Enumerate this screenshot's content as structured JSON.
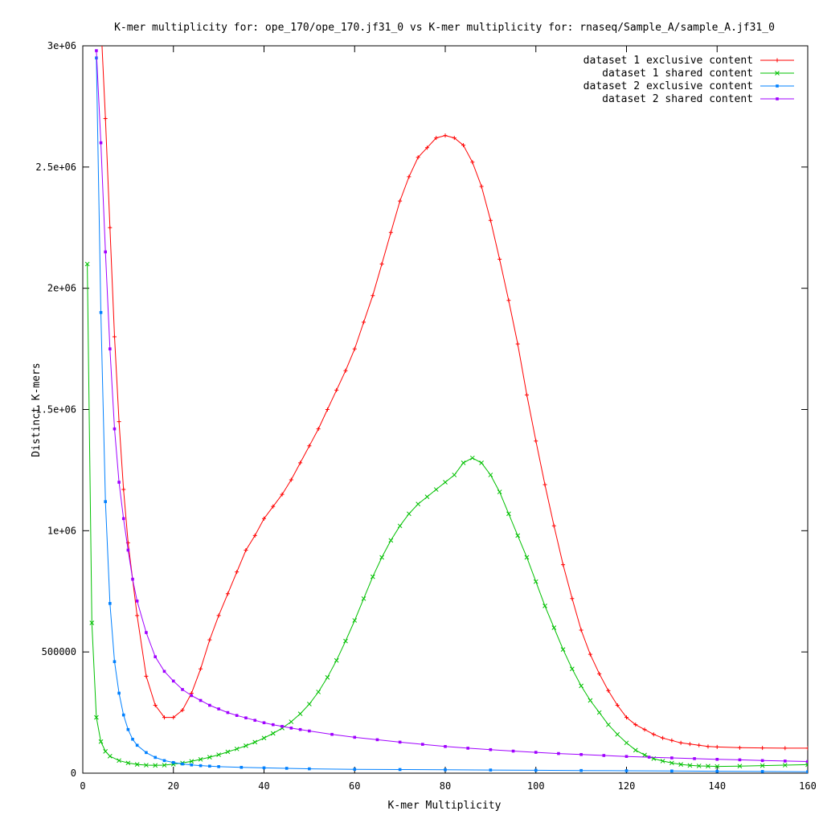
{
  "chart_data": {
    "type": "line",
    "title": "K-mer multiplicity for: ope_170/ope_170.jf31_0 vs K-mer multiplicity for: rnaseq/Sample_A/sample_A.jf31_0",
    "xlabel": "K-mer Multiplicity",
    "ylabel": "Distinct K-mers",
    "xlim": [
      0,
      160
    ],
    "ylim": [
      0,
      3000000
    ],
    "x_ticks": [
      0,
      20,
      40,
      60,
      80,
      100,
      120,
      140,
      160
    ],
    "y_ticks": [
      0,
      500000,
      1000000,
      1500000,
      2000000,
      2500000,
      3000000
    ],
    "x_tick_labels": [
      "0",
      "20",
      "40",
      "60",
      "80",
      "100",
      "120",
      "140",
      "160"
    ],
    "y_tick_labels": [
      "0",
      "500000",
      "1e+06",
      "1.5e+06",
      "2e+06",
      "2.5e+06",
      "3e+06"
    ],
    "grid": false,
    "legend_position": "top-right",
    "series": [
      {
        "name": "dataset 1 exclusive content",
        "color": "#ff0000",
        "marker": "plus",
        "x": [
          4,
          5,
          6,
          7,
          8,
          9,
          10,
          12,
          14,
          16,
          18,
          20,
          22,
          24,
          26,
          28,
          30,
          32,
          34,
          36,
          38,
          40,
          42,
          44,
          46,
          48,
          50,
          52,
          54,
          56,
          58,
          60,
          62,
          64,
          66,
          68,
          70,
          72,
          74,
          76,
          78,
          80,
          82,
          84,
          86,
          88,
          90,
          92,
          94,
          96,
          98,
          100,
          102,
          104,
          106,
          108,
          110,
          112,
          114,
          116,
          118,
          120,
          122,
          124,
          126,
          128,
          130,
          132,
          134,
          136,
          138,
          140,
          145,
          150,
          155,
          160
        ],
        "y": [
          3100000,
          2700000,
          2250000,
          1800000,
          1450000,
          1170000,
          950000,
          650000,
          400000,
          280000,
          230000,
          230000,
          260000,
          330000,
          430000,
          550000,
          650000,
          740000,
          830000,
          920000,
          980000,
          1050000,
          1100000,
          1150000,
          1210000,
          1280000,
          1350000,
          1420000,
          1500000,
          1580000,
          1660000,
          1750000,
          1860000,
          1970000,
          2100000,
          2230000,
          2360000,
          2460000,
          2540000,
          2580000,
          2620000,
          2630000,
          2620000,
          2590000,
          2520000,
          2420000,
          2280000,
          2120000,
          1950000,
          1770000,
          1560000,
          1370000,
          1190000,
          1020000,
          860000,
          720000,
          590000,
          490000,
          410000,
          340000,
          280000,
          230000,
          200000,
          180000,
          160000,
          145000,
          135000,
          125000,
          120000,
          115000,
          110000,
          108000,
          105000,
          104000,
          103000,
          103000
        ]
      },
      {
        "name": "dataset 1 shared content",
        "color": "#00c000",
        "marker": "cross",
        "x": [
          1,
          2,
          3,
          4,
          5,
          6,
          8,
          10,
          12,
          14,
          16,
          18,
          20,
          22,
          24,
          26,
          28,
          30,
          32,
          34,
          36,
          38,
          40,
          42,
          44,
          46,
          48,
          50,
          52,
          54,
          56,
          58,
          60,
          62,
          64,
          66,
          68,
          70,
          72,
          74,
          76,
          78,
          80,
          82,
          84,
          86,
          88,
          90,
          92,
          94,
          96,
          98,
          100,
          102,
          104,
          106,
          108,
          110,
          112,
          114,
          116,
          118,
          120,
          122,
          124,
          126,
          128,
          130,
          132,
          134,
          136,
          138,
          140,
          145,
          150,
          155,
          160
        ],
        "y": [
          2100000,
          620000,
          230000,
          130000,
          90000,
          70000,
          52000,
          42000,
          36000,
          33000,
          32000,
          33000,
          37000,
          42000,
          49000,
          57000,
          66000,
          76000,
          88000,
          100000,
          113000,
          128000,
          145000,
          164000,
          186000,
          212000,
          245000,
          285000,
          335000,
          395000,
          465000,
          545000,
          630000,
          720000,
          810000,
          890000,
          960000,
          1020000,
          1070000,
          1110000,
          1140000,
          1170000,
          1200000,
          1230000,
          1280000,
          1300000,
          1280000,
          1230000,
          1160000,
          1070000,
          980000,
          890000,
          790000,
          690000,
          600000,
          510000,
          430000,
          360000,
          300000,
          250000,
          200000,
          160000,
          125000,
          95000,
          75000,
          60000,
          50000,
          42000,
          36000,
          32000,
          30000,
          29000,
          28000,
          29000,
          31000,
          33000,
          35000
        ]
      },
      {
        "name": "dataset 2 exclusive content",
        "color": "#0080ff",
        "marker": "square",
        "x": [
          3,
          4,
          5,
          6,
          7,
          8,
          9,
          10,
          11,
          12,
          14,
          16,
          18,
          20,
          22,
          24,
          26,
          28,
          30,
          35,
          40,
          45,
          50,
          60,
          70,
          80,
          90,
          100,
          110,
          120,
          130,
          140,
          150,
          160
        ],
        "y": [
          2950000,
          1900000,
          1120000,
          700000,
          460000,
          330000,
          240000,
          180000,
          140000,
          115000,
          85000,
          65000,
          52000,
          44000,
          38000,
          34000,
          31000,
          29000,
          27000,
          24000,
          22000,
          20000,
          18000,
          16000,
          15000,
          14000,
          13000,
          12000,
          11000,
          10000,
          9000,
          8000,
          7000,
          6000
        ]
      },
      {
        "name": "dataset 2 shared content",
        "color": "#a000ff",
        "marker": "square",
        "x": [
          3,
          4,
          5,
          6,
          7,
          8,
          9,
          10,
          11,
          12,
          14,
          16,
          18,
          20,
          22,
          24,
          26,
          28,
          30,
          32,
          34,
          36,
          38,
          40,
          42,
          44,
          46,
          48,
          50,
          55,
          60,
          65,
          70,
          75,
          80,
          85,
          90,
          95,
          100,
          105,
          110,
          115,
          120,
          125,
          130,
          135,
          140,
          145,
          150,
          155,
          160
        ],
        "y": [
          2980000,
          2600000,
          2150000,
          1750000,
          1420000,
          1200000,
          1050000,
          920000,
          800000,
          710000,
          580000,
          480000,
          420000,
          380000,
          345000,
          320000,
          300000,
          280000,
          265000,
          250000,
          238000,
          228000,
          218000,
          208000,
          200000,
          193000,
          186000,
          180000,
          174000,
          160000,
          148000,
          138000,
          128000,
          119000,
          110000,
          103000,
          97000,
          91000,
          86000,
          81000,
          77000,
          73000,
          69000,
          66000,
          63000,
          60000,
          57000,
          55000,
          52000,
          50000,
          48000
        ]
      }
    ]
  }
}
